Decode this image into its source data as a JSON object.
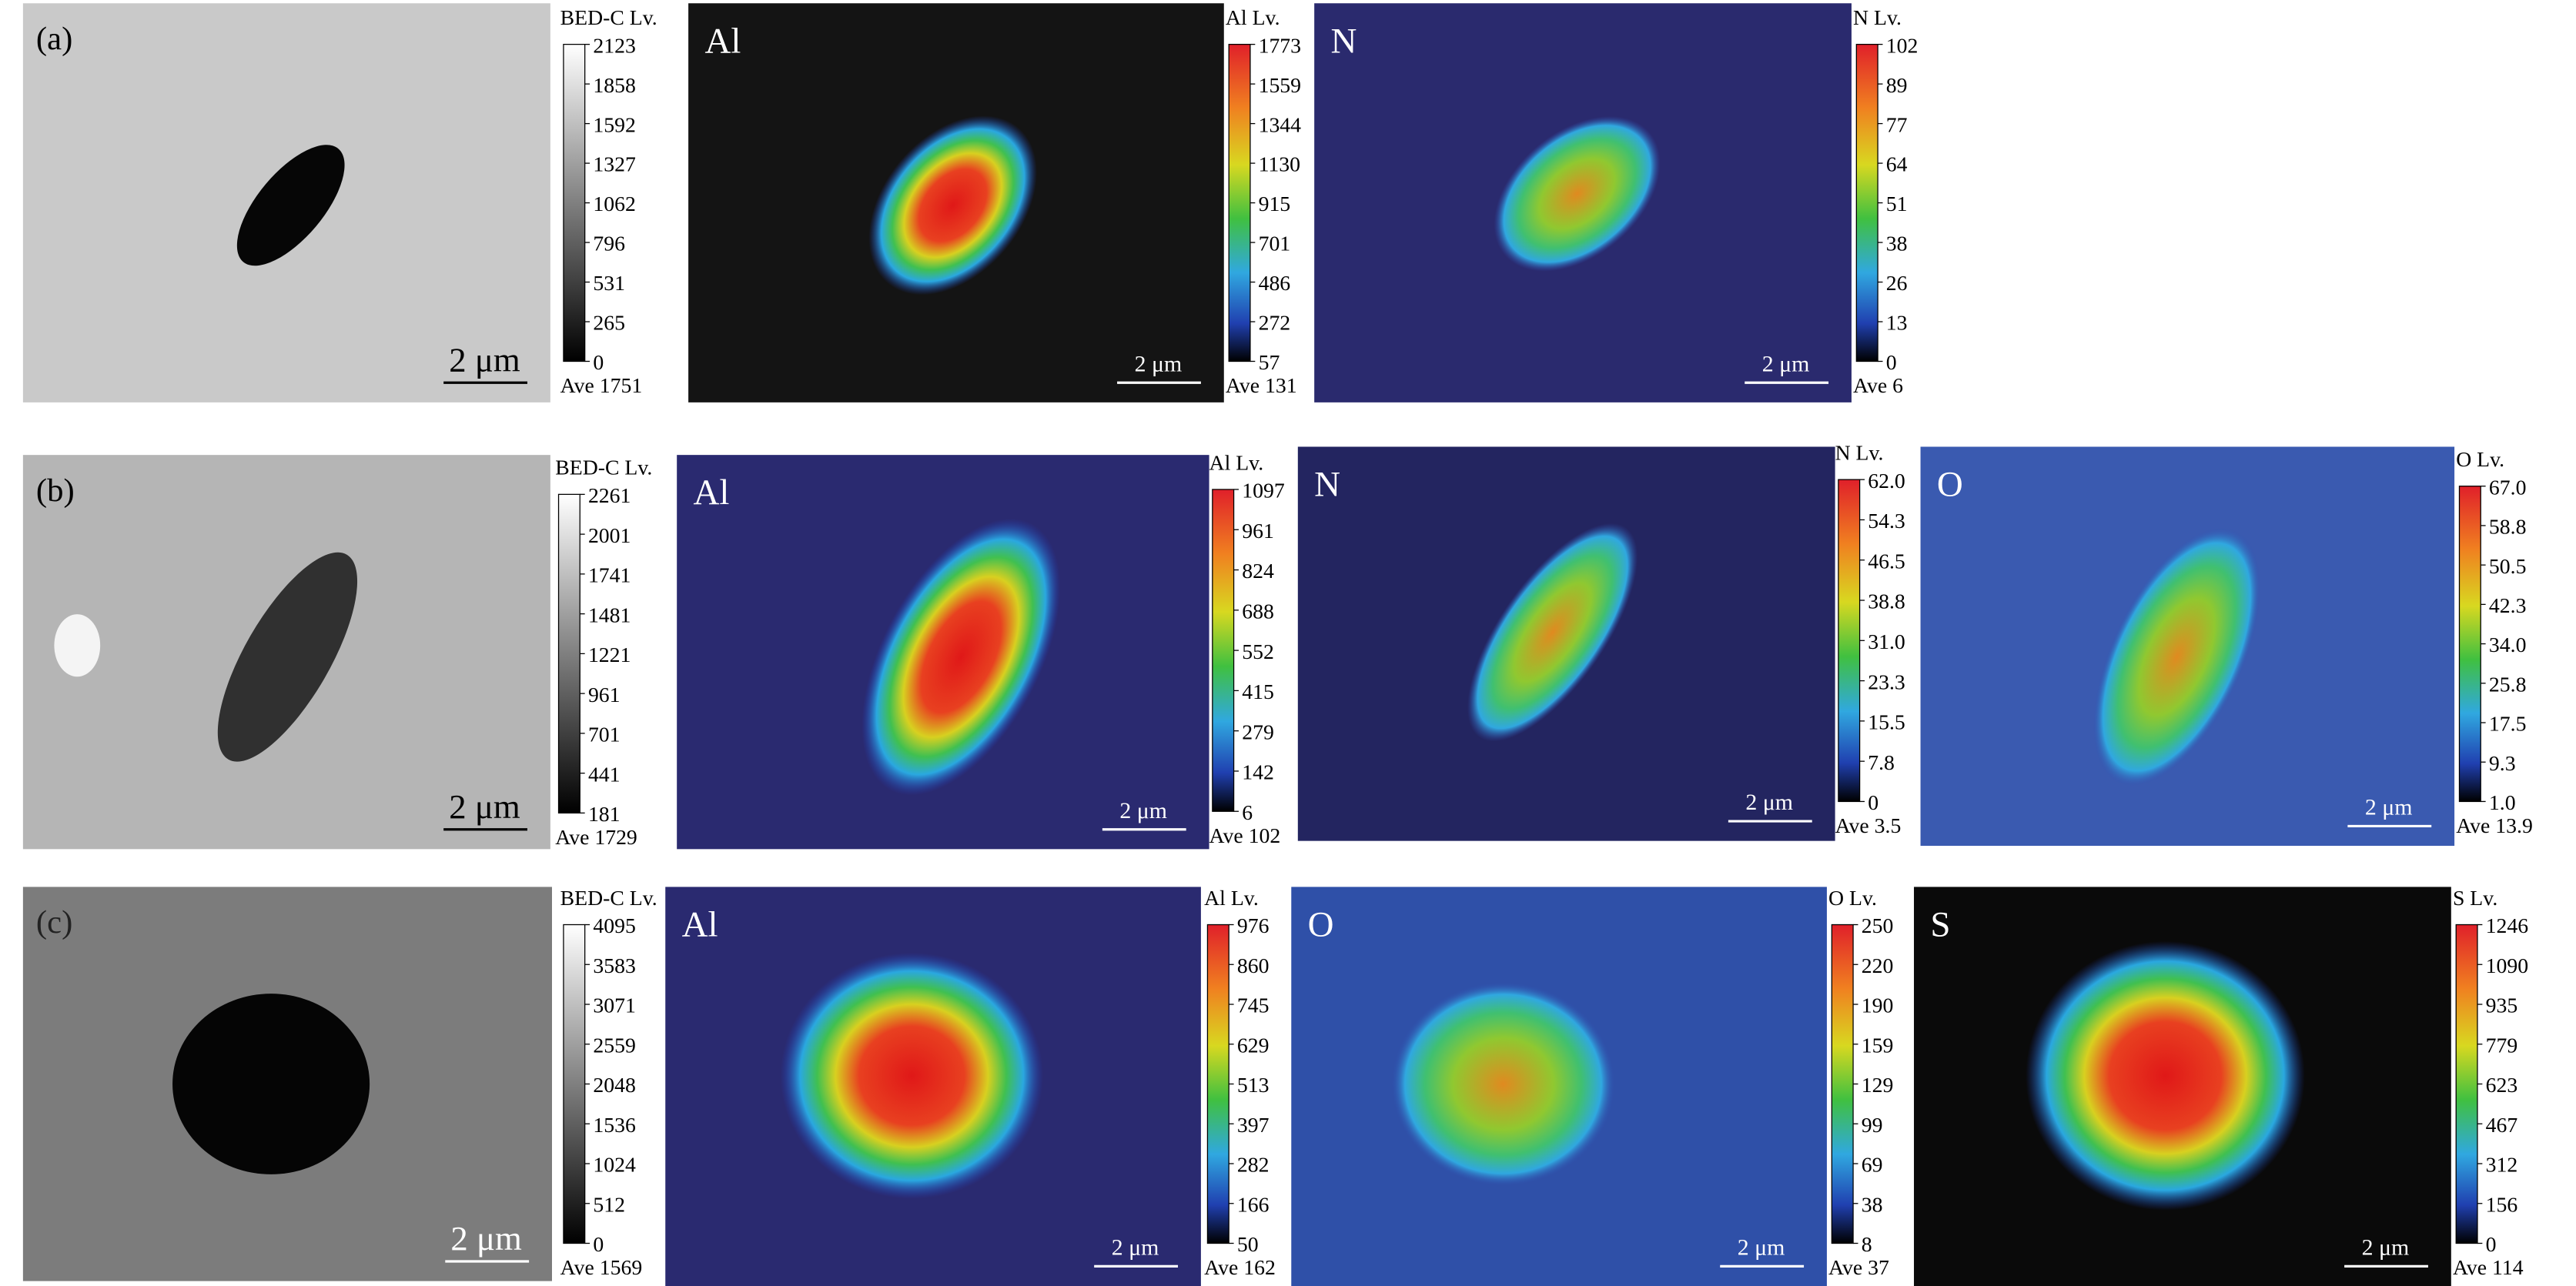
{
  "rows": [
    {
      "label": "(a)",
      "panels": [
        {
          "colorbar_title": "BED-C Lv.",
          "ticks": [
            "2123",
            "1858",
            "1592",
            "1327",
            "1062",
            "796",
            "531",
            "265",
            "0"
          ],
          "average": "Ave 1751",
          "scale_bar": "2 μm"
        },
        {
          "element": "Al",
          "colorbar_title": "Al Lv.",
          "ticks": [
            "1773",
            "1559",
            "1344",
            "1130",
            "915",
            "701",
            "486",
            "272",
            "57"
          ],
          "average": "Ave 131",
          "scale_bar": "2 μm"
        },
        {
          "element": "N",
          "colorbar_title": "N Lv.",
          "ticks": [
            "102",
            "89",
            "77",
            "64",
            "51",
            "38",
            "26",
            "13",
            "0"
          ],
          "average": "Ave 6",
          "scale_bar": "2 μm"
        }
      ]
    },
    {
      "label": "(b)",
      "panels": [
        {
          "colorbar_title": "BED-C Lv.",
          "ticks": [
            "2261",
            "2001",
            "1741",
            "1481",
            "1221",
            "961",
            "701",
            "441",
            "181"
          ],
          "average": "Ave 1729",
          "scale_bar": "2 μm"
        },
        {
          "element": "Al",
          "colorbar_title": "Al Lv.",
          "ticks": [
            "1097",
            "961",
            "824",
            "688",
            "552",
            "415",
            "279",
            "142",
            "6"
          ],
          "average": "Ave 102",
          "scale_bar": "2 μm"
        },
        {
          "element": "N",
          "colorbar_title": "N Lv.",
          "ticks": [
            "62.0",
            "54.3",
            "46.5",
            "38.8",
            "31.0",
            "23.3",
            "15.5",
            "7.8",
            "0"
          ],
          "average": "Ave 3.5",
          "scale_bar": "2 μm"
        },
        {
          "element": "O",
          "colorbar_title": "O Lv.",
          "ticks": [
            "67.0",
            "58.8",
            "50.5",
            "42.3",
            "34.0",
            "25.8",
            "17.5",
            "9.3",
            "1.0"
          ],
          "average": "Ave 13.9",
          "scale_bar": "2 μm"
        }
      ]
    },
    {
      "label": "(c)",
      "panels": [
        {
          "colorbar_title": "BED-C Lv.",
          "ticks": [
            "4095",
            "3583",
            "3071",
            "2559",
            "2048",
            "1536",
            "1024",
            "512",
            "0"
          ],
          "average": "Ave 1569",
          "scale_bar": "2 μm"
        },
        {
          "element": "Al",
          "colorbar_title": "Al Lv.",
          "ticks": [
            "976",
            "860",
            "745",
            "629",
            "513",
            "397",
            "282",
            "166",
            "50"
          ],
          "average": "Ave 162",
          "scale_bar": "2 μm"
        },
        {
          "element": "O",
          "colorbar_title": "O Lv.",
          "ticks": [
            "250",
            "220",
            "190",
            "159",
            "129",
            "99",
            "69",
            "38",
            "8"
          ],
          "average": "Ave 37",
          "scale_bar": "2 μm"
        },
        {
          "element": "S",
          "colorbar_title": "S Lv.",
          "ticks": [
            "1246",
            "1090",
            "935",
            "779",
            "623",
            "467",
            "312",
            "156",
            "0"
          ],
          "average": "Ave 114",
          "scale_bar": "2 μm"
        }
      ]
    }
  ]
}
